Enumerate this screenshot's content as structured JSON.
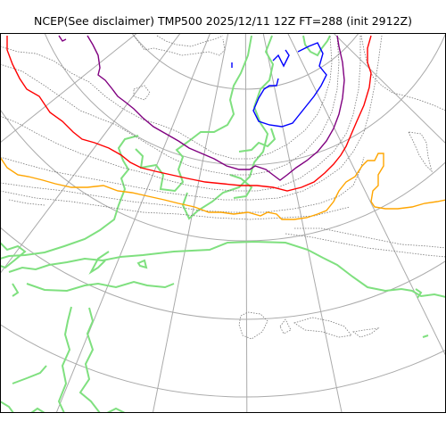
{
  "figure": {
    "title": "NCEP(See disclaimer) TMP500 2025/12/11 12Z FT=288 (init 2912Z)"
  },
  "colors": {
    "background": "#ffffff",
    "frame": "#000000",
    "graticule": "#aaaaaa",
    "coastline": "#7fe07f",
    "isotherm_gray": "#777777",
    "isotherm_blue": "#0000ff",
    "isotherm_purple": "#800080",
    "isotherm_red": "#ff0000",
    "isotherm_orange": "#ffa500"
  }
}
